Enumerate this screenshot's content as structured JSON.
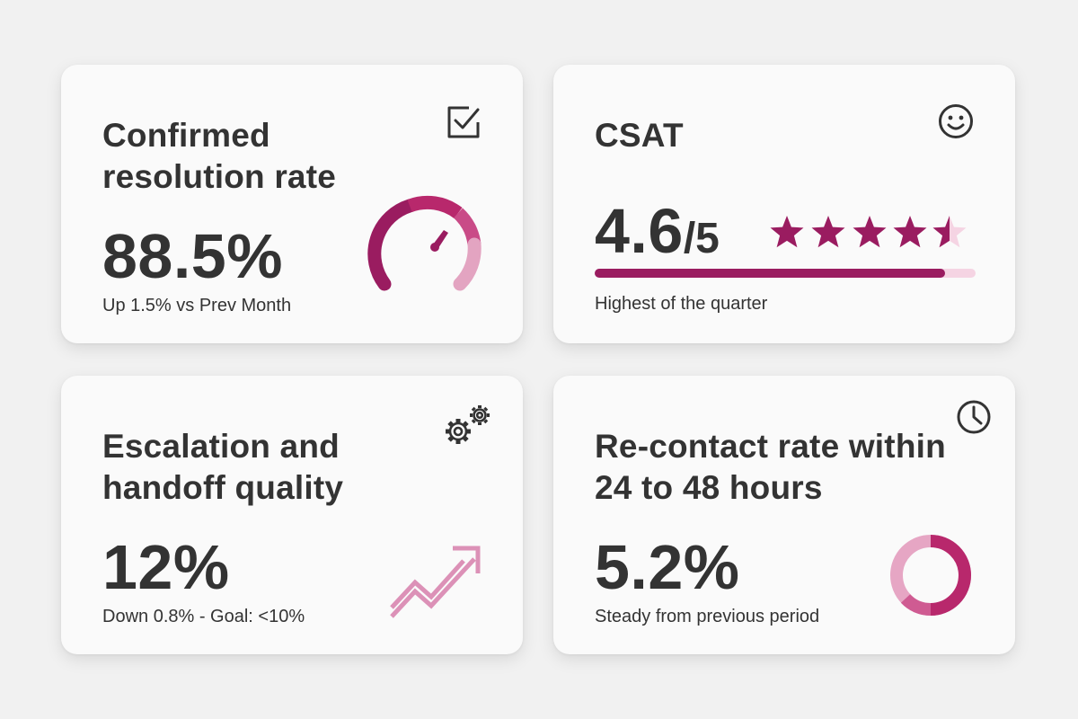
{
  "colors": {
    "accent": "#9a1c60",
    "accent_mid": "#c0377a",
    "accent_light": "#e6a6c4",
    "accent_pale": "#f5d4e3"
  },
  "cards": [
    {
      "title": "Confirmed\nresolution rate",
      "value": "88.5%",
      "subtitle": "Up 1.5% vs Prev Month",
      "icon": "checkbox-icon",
      "visual": {
        "type": "gauge",
        "level_fraction": 0.885
      }
    },
    {
      "title": "CSAT",
      "value_main": "4.6",
      "value_denom": "/5",
      "subtitle": "Highest of the quarter",
      "icon": "smiley-icon",
      "visual": {
        "type": "stars",
        "rating": 4.6,
        "max": 5,
        "bar_fraction": 0.92
      }
    },
    {
      "title": "Escalation and\nhandoff quality",
      "value": "12%",
      "subtitle": "Down 0.8% - Goal: <10%",
      "icon": "gears-icon",
      "visual": {
        "type": "trend-arrow"
      }
    },
    {
      "title": "Re-contact rate within\n24 to 48 hours",
      "value": "5.2%",
      "subtitle": "Steady from previous period",
      "icon": "clock-icon",
      "visual": {
        "type": "ring"
      }
    }
  ]
}
